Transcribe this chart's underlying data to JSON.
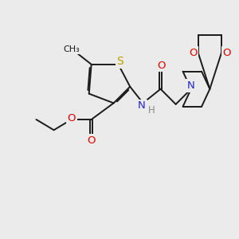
{
  "bg_color": "#ebebeb",
  "bond_color": "#1a1a1a",
  "bond_width": 1.4,
  "dbo": 0.055,
  "atom_colors": {
    "S": "#b8a000",
    "O": "#dd0000",
    "N": "#2222cc",
    "C": "#1a1a1a",
    "H": "#888888"
  },
  "font_size": 9.0,
  "figsize": [
    3.0,
    3.0
  ]
}
